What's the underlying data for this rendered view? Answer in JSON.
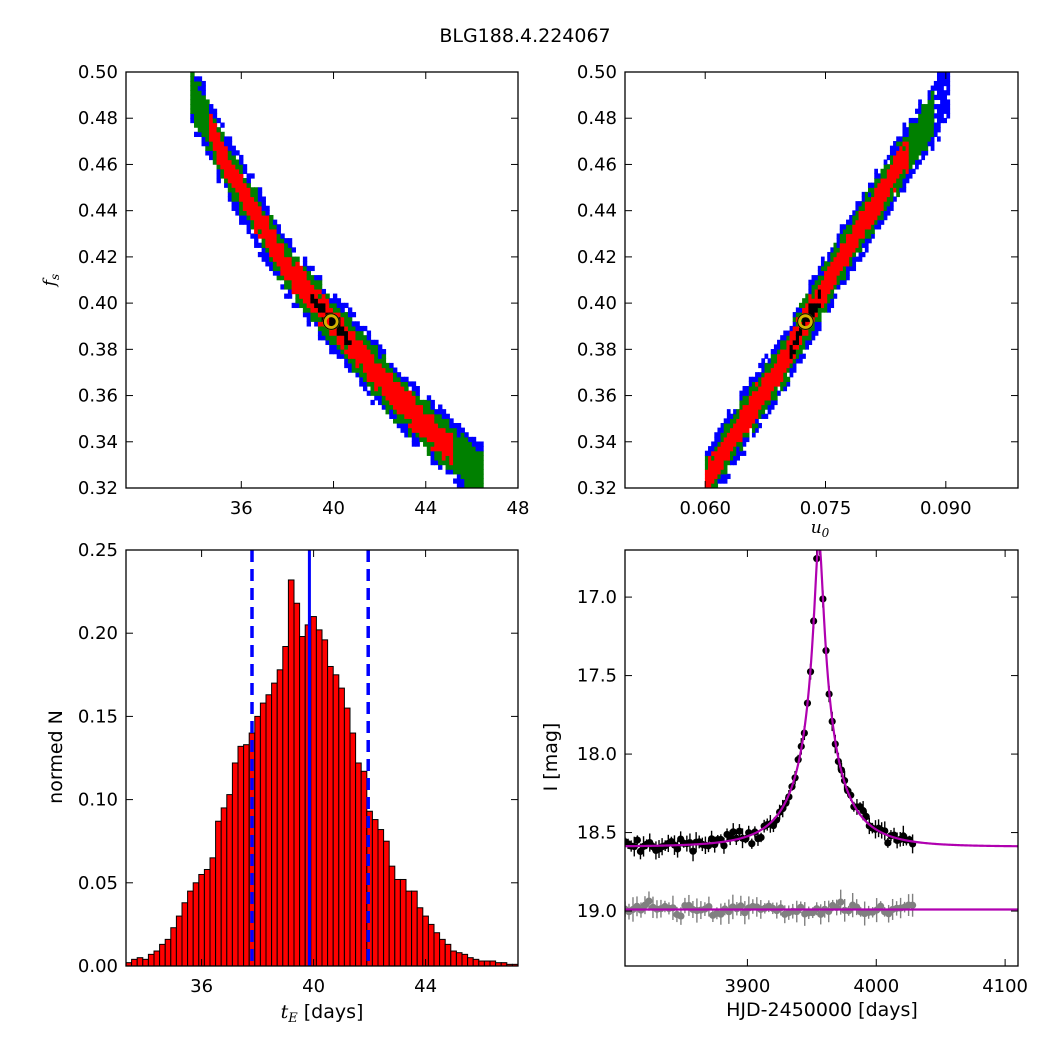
{
  "title": "BLG188.4.224067",
  "chart_data": [
    {
      "type": "heatmap",
      "panel": "top-left",
      "xlabel": "",
      "ylabel": "f_s",
      "xlim": [
        31,
        48
      ],
      "ylim": [
        0.32,
        0.5
      ],
      "xticks": [
        36,
        40,
        44,
        48
      ],
      "yticks": [
        0.32,
        0.34,
        0.36,
        0.38,
        0.4,
        0.42,
        0.44,
        0.46,
        0.48,
        0.5
      ],
      "xtick_labels": [
        "36",
        "40",
        "44",
        "48"
      ],
      "ytick_labels": [
        "0.32",
        "0.34",
        "0.36",
        "0.38",
        "0.40",
        "0.42",
        "0.44",
        "0.46",
        "0.48",
        "0.50"
      ],
      "confidence_colors": {
        "outer": "#0000ff",
        "mid": "#008000",
        "inner": "#ff0000",
        "core": "#000000"
      },
      "ridge": [
        [
          33.8,
          0.492
        ],
        [
          35.5,
          0.458
        ],
        [
          38.0,
          0.415
        ],
        [
          40.0,
          0.392
        ],
        [
          42.5,
          0.362
        ],
        [
          44.5,
          0.342
        ],
        [
          46.5,
          0.325
        ]
      ],
      "best_fit": {
        "x": 39.9,
        "y": 0.392
      }
    },
    {
      "type": "heatmap",
      "panel": "top-right",
      "xlabel": "u_0",
      "ylabel": "",
      "xlim": [
        0.05,
        0.099
      ],
      "ylim": [
        0.32,
        0.5
      ],
      "xticks": [
        0.06,
        0.075,
        0.09
      ],
      "yticks": [
        0.32,
        0.34,
        0.36,
        0.38,
        0.4,
        0.42,
        0.44,
        0.46,
        0.48,
        0.5
      ],
      "xtick_labels": [
        "0.060",
        "0.075",
        "0.090"
      ],
      "ytick_labels": [
        "0.32",
        "0.34",
        "0.36",
        "0.38",
        "0.40",
        "0.42",
        "0.44",
        "0.46",
        "0.48",
        "0.50"
      ],
      "confidence_colors": {
        "outer": "#0000ff",
        "mid": "#008000",
        "inner": "#ff0000",
        "core": "#000000"
      },
      "ridge": [
        [
          0.06,
          0.322
        ],
        [
          0.064,
          0.345
        ],
        [
          0.07,
          0.375
        ],
        [
          0.0725,
          0.392
        ],
        [
          0.078,
          0.425
        ],
        [
          0.084,
          0.458
        ],
        [
          0.0905,
          0.492
        ]
      ],
      "best_fit": {
        "x": 0.0725,
        "y": 0.392
      }
    },
    {
      "type": "bar",
      "panel": "bottom-left",
      "xlabel": "t_E [days]",
      "ylabel": "normed N",
      "xlim": [
        33.3,
        47.3
      ],
      "ylim": [
        0,
        0.25
      ],
      "xticks": [
        36,
        40,
        44
      ],
      "yticks": [
        0.0,
        0.05,
        0.1,
        0.15,
        0.2,
        0.25
      ],
      "xtick_labels": [
        "36",
        "40",
        "44"
      ],
      "ytick_labels": [
        "0.00",
        "0.05",
        "0.10",
        "0.15",
        "0.20",
        "0.25"
      ],
      "bin_start": 33.3,
      "bin_width": 0.2,
      "values": [
        0.002,
        0.004,
        0.005,
        0.004,
        0.007,
        0.009,
        0.013,
        0.016,
        0.023,
        0.03,
        0.038,
        0.045,
        0.05,
        0.055,
        0.058,
        0.065,
        0.087,
        0.095,
        0.103,
        0.122,
        0.132,
        0.133,
        0.14,
        0.15,
        0.158,
        0.163,
        0.17,
        0.178,
        0.192,
        0.232,
        0.218,
        0.198,
        0.205,
        0.21,
        0.202,
        0.196,
        0.18,
        0.175,
        0.167,
        0.155,
        0.14,
        0.122,
        0.117,
        0.093,
        0.088,
        0.082,
        0.075,
        0.06,
        0.052,
        0.052,
        0.045,
        0.045,
        0.035,
        0.03,
        0.025,
        0.02,
        0.016,
        0.013,
        0.009,
        0.008,
        0.007,
        0.005,
        0.004,
        0.003,
        0.003,
        0.003,
        0.002,
        0.002,
        0.001,
        0.001
      ],
      "bar_color": "#ff0000",
      "median_line": 39.85,
      "interval_lines": [
        37.8,
        41.95
      ],
      "line_color": "#0000ff"
    },
    {
      "type": "scatter",
      "panel": "bottom-right",
      "xlabel": "HJD-2450000 [days]",
      "ylabel": "I [mag]",
      "xlim": [
        3805,
        4110
      ],
      "ylim": [
        19.35,
        16.7
      ],
      "xticks": [
        3900,
        4000,
        4100
      ],
      "yticks": [
        17.0,
        17.5,
        18.0,
        18.5,
        19.0
      ],
      "xtick_labels": [
        "3900",
        "4000",
        "4100"
      ],
      "ytick_labels": [
        "17.0",
        "17.5",
        "18.0",
        "18.5",
        "19.0"
      ],
      "model": {
        "t0": 3955.5,
        "tE": 39.9,
        "u0": 0.0725,
        "fs": 0.392,
        "base_mag": 18.59
      },
      "data_range": [
        3805,
        4030
      ],
      "residual_baseline": 18.99,
      "series_colors": {
        "data": "#000000",
        "residuals": "#808080",
        "model": "#b000b0"
      }
    }
  ]
}
